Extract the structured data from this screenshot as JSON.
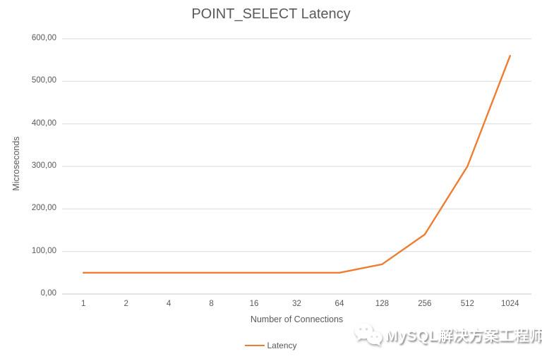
{
  "chart_data": {
    "type": "line",
    "title": "POINT_SELECT Latency",
    "xlabel": "Number of Connections",
    "ylabel": "Microseconds",
    "categories": [
      "1",
      "2",
      "4",
      "8",
      "16",
      "32",
      "64",
      "128",
      "256",
      "512",
      "1024"
    ],
    "series": [
      {
        "name": "Latency",
        "color": "#ED7D31",
        "values": [
          50,
          50,
          50,
          50,
          50,
          50,
          50,
          70,
          140,
          300,
          560
        ]
      }
    ],
    "ylim": [
      0,
      600
    ],
    "ytick_values": [
      0,
      100,
      200,
      300,
      400,
      500,
      600
    ],
    "ytick_labels": [
      "0,00",
      "100,00",
      "200,00",
      "300,00",
      "400,00",
      "500,00",
      "600,00"
    ],
    "grid": true,
    "legend_position": "bottom",
    "gridline_color": "#D9D9D9",
    "axis_line_color": "#C9C9C9",
    "text_color": "#595959"
  },
  "watermark": {
    "text": "MySQL解决方案工程师",
    "icon": "wechat-icon"
  }
}
